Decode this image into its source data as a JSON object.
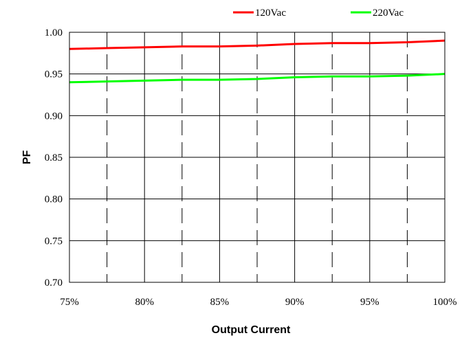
{
  "chart_data": {
    "type": "line",
    "title": "",
    "xlabel": "Output Current",
    "ylabel": "PF",
    "x": [
      75,
      77.5,
      80,
      82.5,
      85,
      87.5,
      90,
      92.5,
      95,
      97.5,
      100
    ],
    "x_tick_values": [
      75,
      80,
      85,
      90,
      95,
      100
    ],
    "x_tick_labels": [
      "75%",
      "80%",
      "85%",
      "90%",
      "95%",
      "100%"
    ],
    "y_tick_values": [
      0.7,
      0.75,
      0.8,
      0.85,
      0.9,
      0.95,
      1.0
    ],
    "y_tick_labels": [
      "0.70",
      "0.75",
      "0.80",
      "0.85",
      "0.90",
      "0.95",
      "1.00"
    ],
    "xlim": [
      75,
      100
    ],
    "ylim": [
      0.7,
      1.0
    ],
    "grid": true,
    "minor_grid_x": [
      77.5,
      82.5,
      87.5,
      92.5,
      97.5
    ],
    "legend_position": "top-right, above plot",
    "series": [
      {
        "name": "120Vac",
        "color": "#ff0000",
        "values": [
          0.98,
          0.981,
          0.982,
          0.983,
          0.983,
          0.984,
          0.986,
          0.987,
          0.987,
          0.988,
          0.99
        ]
      },
      {
        "name": "220Vac",
        "color": "#00ff00",
        "values": [
          0.94,
          0.941,
          0.942,
          0.943,
          0.943,
          0.944,
          0.946,
          0.947,
          0.947,
          0.948,
          0.95
        ]
      }
    ]
  }
}
